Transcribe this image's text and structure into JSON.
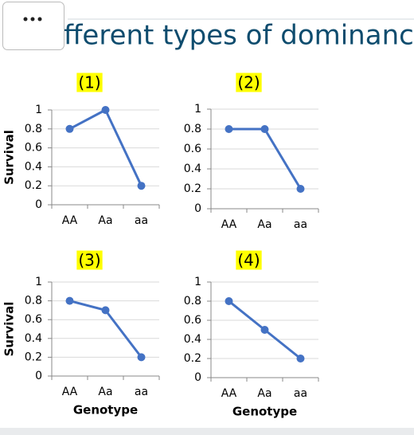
{
  "header": {
    "title": "fferent types of dominanc"
  },
  "chart_data": [
    {
      "type": "line",
      "title": "(1)",
      "y_label": "Survival",
      "categories": [
        "AA",
        "Aa",
        "aa"
      ],
      "series": [
        {
          "color": "#4472c4",
          "values": [
            0.8,
            1,
            0.2
          ]
        }
      ],
      "ylim": [
        0,
        1
      ],
      "yticks": [
        0,
        0.2,
        0.4,
        0.6,
        0.8,
        1
      ],
      "grid": true
    },
    {
      "type": "line",
      "title": "(2)",
      "categories": [
        "AA",
        "Aa",
        "aa"
      ],
      "series": [
        {
          "color": "#4472c4",
          "values": [
            0.8,
            0.8,
            0.2
          ]
        }
      ],
      "ylim": [
        0,
        1
      ],
      "yticks": [
        0,
        0.2,
        0.4,
        0.6,
        0.8,
        1
      ],
      "grid": true
    },
    {
      "type": "line",
      "title": "(3)",
      "y_label": "Survival",
      "x_label": "Genotype",
      "categories": [
        "AA",
        "Aa",
        "aa"
      ],
      "series": [
        {
          "color": "#4472c4",
          "values": [
            0.8,
            0.7,
            0.2
          ]
        }
      ],
      "ylim": [
        0,
        1
      ],
      "yticks": [
        0,
        0.2,
        0.4,
        0.6,
        0.8,
        1
      ],
      "grid": true
    },
    {
      "type": "line",
      "title": "(4)",
      "x_label": "Genotype",
      "categories": [
        "AA",
        "Aa",
        "aa"
      ],
      "series": [
        {
          "color": "#4472c4",
          "values": [
            0.8,
            0.5,
            0.2
          ]
        }
      ],
      "ylim": [
        0,
        1
      ],
      "yticks": [
        0,
        0.2,
        0.4,
        0.6,
        0.8,
        1
      ],
      "grid": true
    }
  ]
}
